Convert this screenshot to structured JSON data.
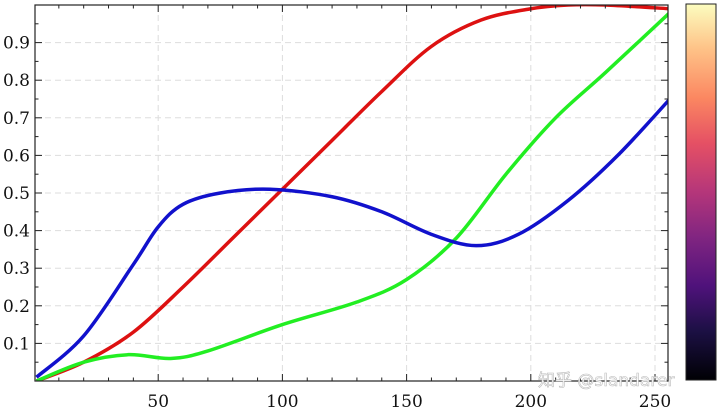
{
  "chart_data": {
    "type": "line",
    "title": "",
    "xlabel": "",
    "ylabel": "",
    "xlim": [
      1,
      256
    ],
    "ylim": [
      0,
      1
    ],
    "x_ticks": [
      50,
      100,
      150,
      200,
      250
    ],
    "y_ticks": [
      0.1,
      0.2,
      0.3,
      0.4,
      0.5,
      0.6,
      0.7,
      0.8,
      0.9
    ],
    "grid": true,
    "legend": null,
    "series": [
      {
        "name": "red",
        "color": "#dd1111",
        "x": [
          1,
          20,
          40,
          60,
          80,
          100,
          120,
          140,
          160,
          180,
          200,
          215,
          230,
          256
        ],
        "y": [
          0.0,
          0.05,
          0.13,
          0.25,
          0.38,
          0.51,
          0.64,
          0.77,
          0.89,
          0.96,
          0.99,
          1.0,
          1.0,
          0.99
        ]
      },
      {
        "name": "green",
        "color": "#22ee22",
        "x": [
          1,
          20,
          38,
          55,
          70,
          100,
          130,
          150,
          170,
          190,
          210,
          230,
          256
        ],
        "y": [
          0.0,
          0.05,
          0.07,
          0.06,
          0.08,
          0.15,
          0.21,
          0.27,
          0.38,
          0.55,
          0.7,
          0.82,
          0.98
        ]
      },
      {
        "name": "blue",
        "color": "#1111cc",
        "x": [
          1,
          20,
          40,
          50,
          60,
          75,
          95,
          120,
          140,
          160,
          178,
          195,
          215,
          235,
          256
        ],
        "y": [
          0.01,
          0.12,
          0.31,
          0.41,
          0.47,
          0.5,
          0.51,
          0.49,
          0.45,
          0.39,
          0.36,
          0.39,
          0.48,
          0.6,
          0.75
        ]
      }
    ],
    "colorbar": {
      "colormap": "magma",
      "position": "right"
    }
  },
  "axes": {
    "x_tick_labels": [
      "50",
      "100",
      "150",
      "200",
      "250"
    ],
    "y_tick_labels": [
      "0.1",
      "0.2",
      "0.3",
      "0.4",
      "0.5",
      "0.6",
      "0.7",
      "0.8",
      "0.9"
    ]
  },
  "watermark": "知乎 @slandarer"
}
